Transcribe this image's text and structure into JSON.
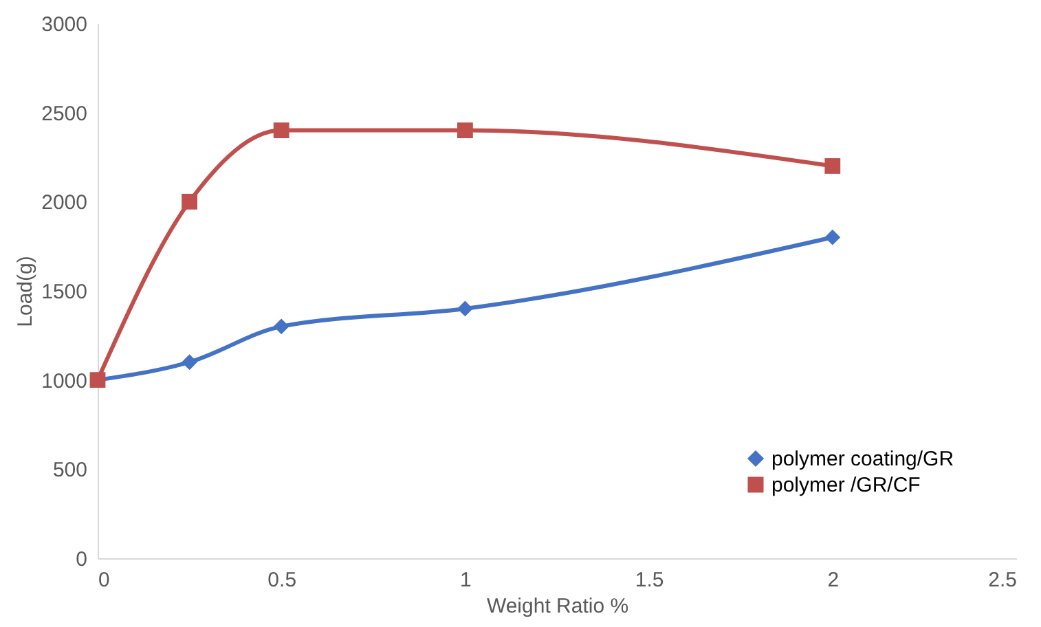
{
  "chart_data": {
    "type": "line",
    "xlabel": "Weight Ratio %",
    "ylabel": "Load(g)",
    "x": [
      0,
      0.25,
      0.5,
      1,
      2
    ],
    "series": [
      {
        "name": "polymer coating/GR",
        "color": "#4472c4",
        "marker": "diamond",
        "values": [
          1000,
          1100,
          1300,
          1400,
          1800
        ]
      },
      {
        "name": "polymer /GR/CF",
        "color": "#c0504d",
        "marker": "square",
        "values": [
          1000,
          2000,
          2400,
          2400,
          2200
        ]
      }
    ],
    "xlim": [
      0,
      2.5
    ],
    "xticks": [
      0,
      0.5,
      1,
      1.5,
      2,
      2.5
    ],
    "ylim": [
      0,
      3000
    ],
    "yticks": [
      0,
      500,
      1000,
      1500,
      2000,
      2500,
      3000
    ],
    "grid": false,
    "legend": "bottom right"
  }
}
